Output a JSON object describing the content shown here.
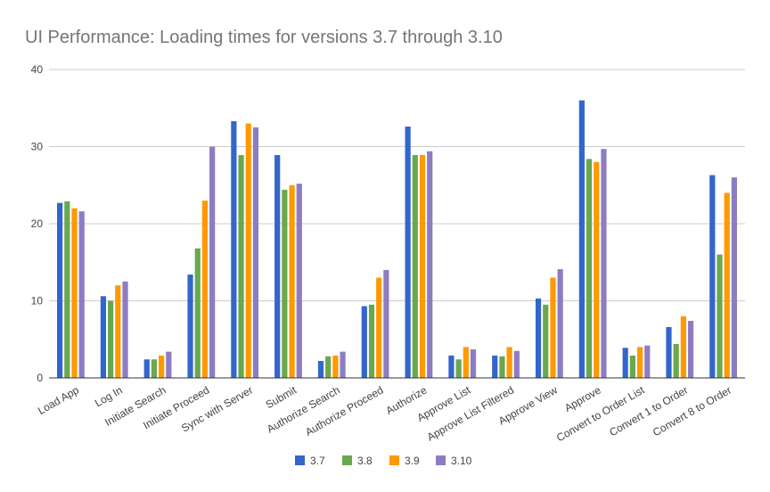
{
  "chart_data": {
    "type": "bar",
    "title": "UI Performance: Loading times for versions 3.7 through 3.10",
    "xlabel": "",
    "ylabel": "",
    "ylim": [
      0,
      40
    ],
    "yticks": [
      0,
      10,
      20,
      30,
      40
    ],
    "grid": true,
    "legend_position": "bottom",
    "categories": [
      "Load App",
      "Log In",
      "Initiate Search",
      "Initiate Proceed",
      "Sync with Server",
      "Submit",
      "Authorize Search",
      "Authorize Proceed",
      "Authorize",
      "Approve List",
      "Approve List Filtered",
      "Approve View",
      "Approve",
      "Convert to Order List",
      "Convert 1 to Order",
      "Convert 8 to Order"
    ],
    "series": [
      {
        "name": "3.7",
        "color": "#3366cc",
        "values": [
          22.7,
          10.6,
          2.4,
          13.4,
          33.3,
          28.9,
          2.2,
          9.3,
          32.6,
          2.9,
          2.9,
          10.3,
          36.0,
          3.9,
          6.6,
          26.3
        ]
      },
      {
        "name": "3.8",
        "color": "#6aa84f",
        "values": [
          22.9,
          10.0,
          2.4,
          16.8,
          28.9,
          24.4,
          2.8,
          9.5,
          28.9,
          2.4,
          2.8,
          9.5,
          28.4,
          2.9,
          4.4,
          16.0
        ]
      },
      {
        "name": "3.9",
        "color": "#ff9900",
        "values": [
          22.0,
          12.0,
          2.9,
          23.0,
          33.0,
          25.0,
          2.9,
          13.0,
          28.9,
          4.0,
          4.0,
          13.0,
          28.0,
          4.0,
          8.0,
          24.0
        ]
      },
      {
        "name": "3.10",
        "color": "#8e7cc3",
        "values": [
          21.6,
          12.5,
          3.4,
          30.0,
          32.5,
          25.2,
          3.4,
          14.0,
          29.4,
          3.7,
          3.5,
          14.1,
          29.7,
          4.2,
          7.4,
          26.0
        ]
      }
    ]
  }
}
